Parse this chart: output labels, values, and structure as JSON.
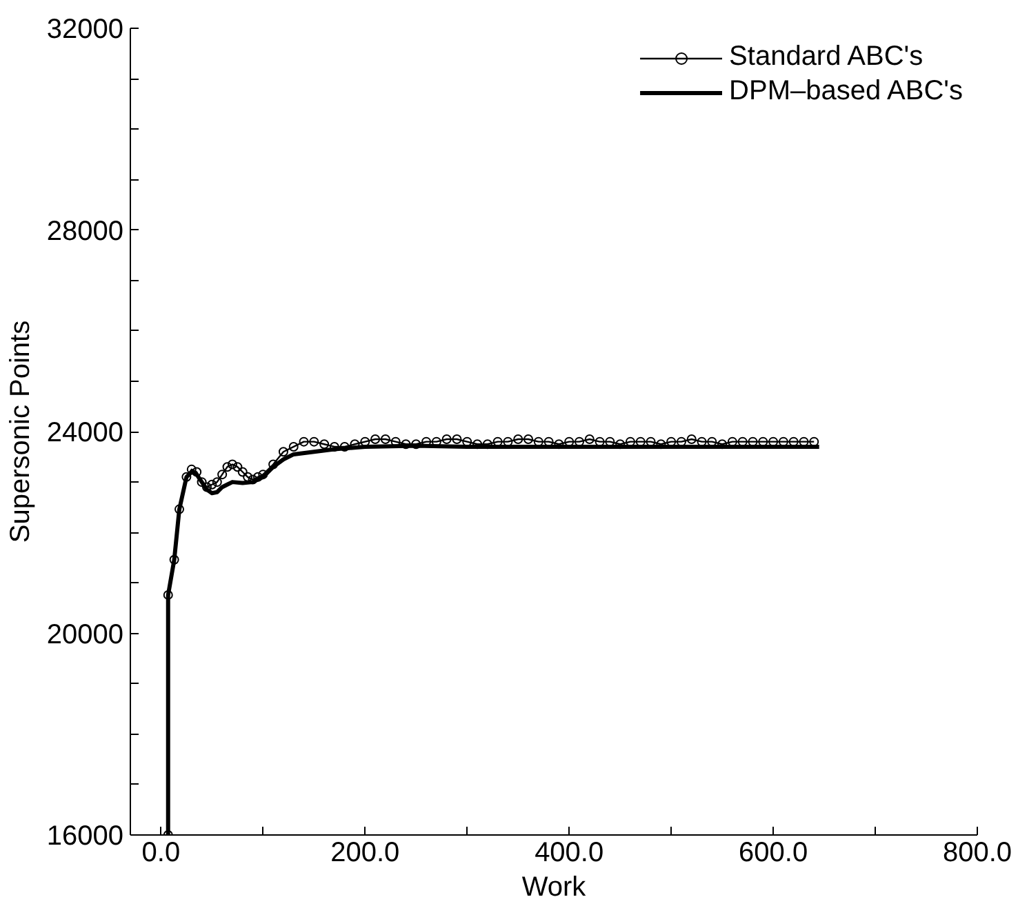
{
  "chart_data": {
    "type": "line",
    "xlabel": "Work",
    "ylabel": "Supersonic Points",
    "xlim": [
      -30,
      800
    ],
    "ylim": [
      16000,
      32000
    ],
    "xticks": [
      {
        "value": 0,
        "label": "0.0"
      },
      {
        "value": 100,
        "label": null
      },
      {
        "value": 200,
        "label": "200.0"
      },
      {
        "value": 300,
        "label": null
      },
      {
        "value": 400,
        "label": "400.0"
      },
      {
        "value": 500,
        "label": null
      },
      {
        "value": 600,
        "label": "600.0"
      },
      {
        "value": 700,
        "label": null
      },
      {
        "value": 800,
        "label": "800.0"
      }
    ],
    "yticks": [
      16000,
      {
        "value": 17000,
        "label": null
      },
      {
        "value": 18000,
        "label": null
      },
      {
        "value": 19000,
        "label": null
      },
      20000,
      {
        "value": 21000,
        "label": null
      },
      {
        "value": 22000,
        "label": null
      },
      {
        "value": 23000,
        "label": null
      },
      24000,
      {
        "value": 25000,
        "label": null
      },
      {
        "value": 26000,
        "label": null
      },
      {
        "value": 27000,
        "label": null
      },
      28000,
      {
        "value": 29000,
        "label": null
      },
      {
        "value": 30000,
        "label": null
      },
      {
        "value": 31000,
        "label": null
      },
      32000
    ],
    "grid": false,
    "legend": "top right",
    "series": [
      {
        "name": "Standard ABC's",
        "color": "#000000",
        "marker": "circle",
        "x": [
          7,
          7,
          13,
          18,
          25,
          30,
          35,
          40,
          45,
          50,
          55,
          60,
          65,
          70,
          75,
          80,
          85,
          90,
          95,
          100,
          110,
          120,
          130,
          140,
          150,
          160,
          170,
          180,
          190,
          200,
          210,
          220,
          230,
          240,
          250,
          260,
          270,
          280,
          290,
          300,
          310,
          320,
          330,
          340,
          350,
          360,
          370,
          380,
          390,
          400,
          410,
          420,
          430,
          440,
          450,
          460,
          470,
          480,
          490,
          500,
          510,
          520,
          530,
          540,
          550,
          560,
          570,
          580,
          590,
          600,
          610,
          620,
          630,
          640
        ],
        "values": [
          16000,
          20760,
          21460,
          22460,
          23100,
          23250,
          23200,
          23000,
          22900,
          22950,
          23000,
          23150,
          23300,
          23350,
          23300,
          23200,
          23100,
          23050,
          23100,
          23150,
          23350,
          23600,
          23700,
          23800,
          23800,
          23750,
          23700,
          23700,
          23750,
          23800,
          23850,
          23850,
          23800,
          23750,
          23750,
          23800,
          23800,
          23850,
          23850,
          23800,
          23750,
          23750,
          23800,
          23800,
          23850,
          23850,
          23800,
          23800,
          23750,
          23800,
          23800,
          23850,
          23800,
          23800,
          23750,
          23800,
          23800,
          23800,
          23750,
          23800,
          23800,
          23850,
          23800,
          23800,
          23750,
          23800,
          23800,
          23800,
          23800,
          23800,
          23800,
          23800,
          23800,
          23800
        ]
      },
      {
        "name": "DPM–based ABC's",
        "color": "#000000",
        "x": [
          7,
          7,
          13,
          18,
          25,
          30,
          35,
          40,
          45,
          50,
          55,
          60,
          65,
          70,
          80,
          90,
          100,
          110,
          120,
          130,
          150,
          170,
          200,
          250,
          300,
          400,
          500,
          645
        ],
        "values": [
          16000,
          20760,
          21460,
          22460,
          23100,
          23200,
          23150,
          23000,
          22850,
          22780,
          22800,
          22900,
          22950,
          23000,
          22980,
          23000,
          23100,
          23300,
          23450,
          23550,
          23600,
          23650,
          23700,
          23720,
          23700,
          23700,
          23700,
          23700
        ]
      }
    ]
  }
}
